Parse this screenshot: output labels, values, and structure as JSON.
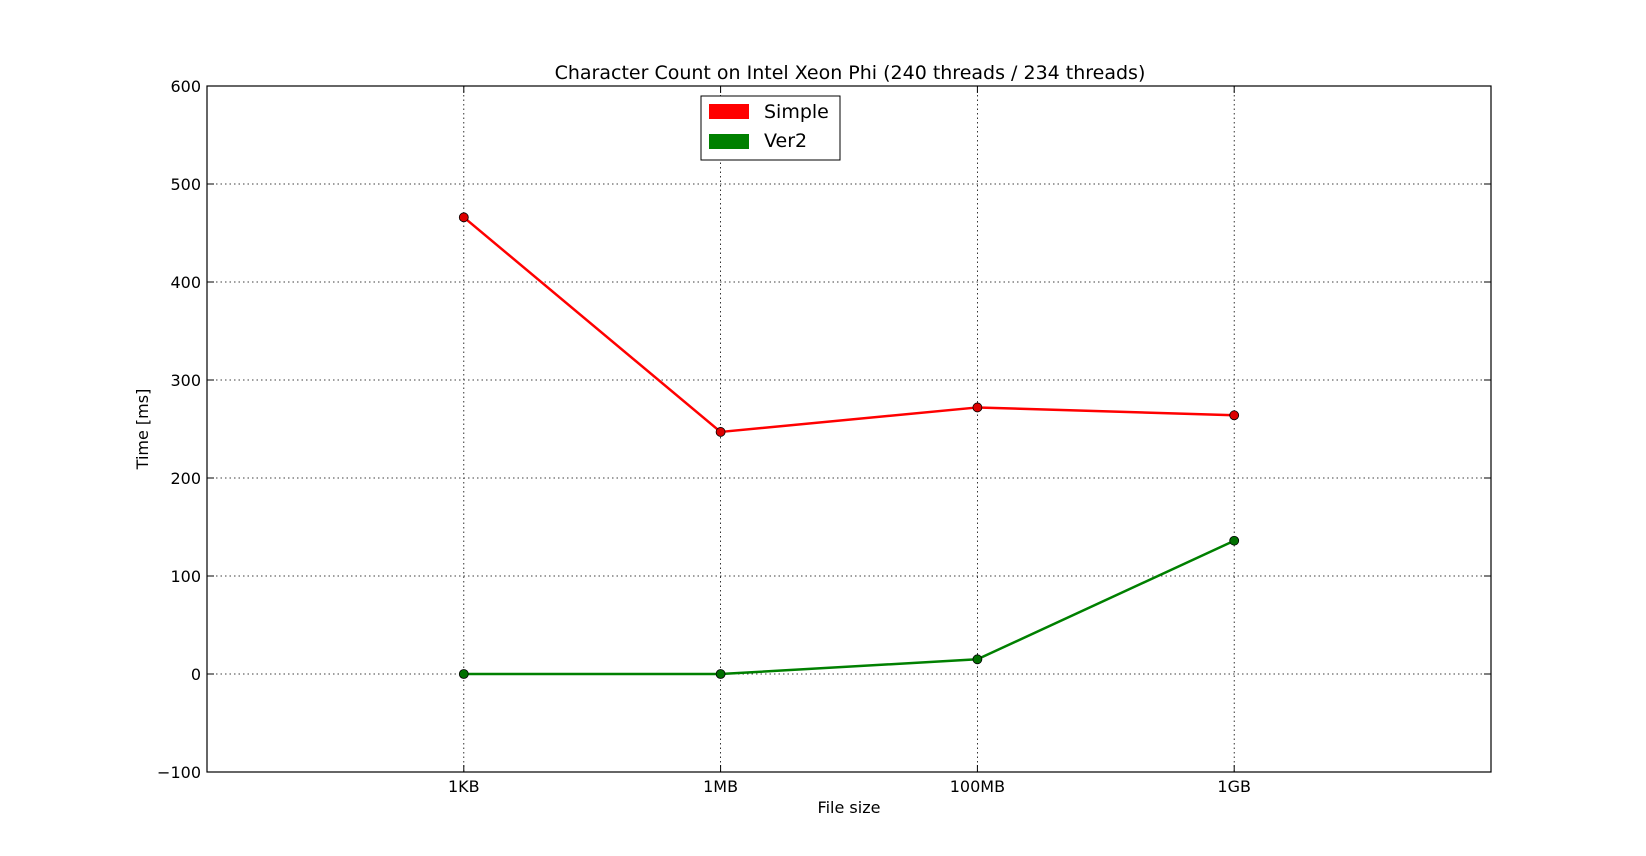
{
  "chart_data": {
    "type": "line",
    "title": "Character Count on Intel Xeon Phi (240 threads / 234 threads)",
    "xlabel": "File size",
    "ylabel": "Time [ms]",
    "categories": [
      "1KB",
      "1MB",
      "100MB",
      "1GB"
    ],
    "ylim": [
      -100,
      600
    ],
    "yticks": [
      -100,
      0,
      100,
      200,
      300,
      400,
      500,
      600
    ],
    "ytick_labels": [
      "−100",
      "0",
      "100",
      "200",
      "300",
      "400",
      "500",
      "600"
    ],
    "grid": true,
    "legend_position": "top-center",
    "series": [
      {
        "name": "Simple",
        "color": "#ff0000",
        "marker_color": "#dd0000",
        "values": [
          466,
          247,
          272,
          264
        ]
      },
      {
        "name": "Ver2",
        "color": "#008000",
        "marker_color": "#007000",
        "values": [
          0,
          0,
          15,
          136
        ]
      }
    ]
  }
}
